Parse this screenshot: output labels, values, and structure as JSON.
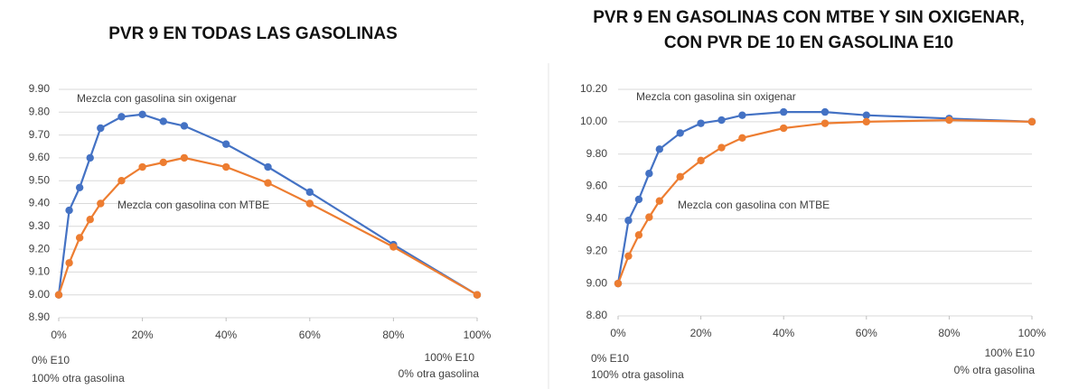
{
  "chart_data": [
    {
      "type": "line",
      "title": [
        "PVR 9 EN TODAS LAS GASOLINAS"
      ],
      "x": [
        0,
        2.5,
        5,
        7.5,
        10,
        15,
        20,
        25,
        30,
        40,
        50,
        60,
        80,
        100
      ],
      "series": [
        {
          "name": "Mezcla con gasolina sin oxigenar",
          "color": "#4472c4",
          "values": [
            9.0,
            9.37,
            9.47,
            9.6,
            9.73,
            9.78,
            9.79,
            9.76,
            9.74,
            9.66,
            9.56,
            9.45,
            9.22,
            9.0
          ]
        },
        {
          "name": "Mezcla con gasolina con MTBE",
          "color": "#ed7d31",
          "values": [
            9.0,
            9.14,
            9.25,
            9.33,
            9.4,
            9.5,
            9.56,
            9.58,
            9.6,
            9.56,
            9.49,
            9.4,
            9.21,
            9.0
          ]
        }
      ],
      "xlim": [
        0,
        100
      ],
      "xticks": [
        {
          "value": 0,
          "label": "0%"
        },
        {
          "value": 20,
          "label": "20%"
        },
        {
          "value": 40,
          "label": "40%"
        },
        {
          "value": 60,
          "label": "60%"
        },
        {
          "value": 80,
          "label": "80%"
        },
        {
          "value": 100,
          "label": "100%"
        }
      ],
      "ylim": [
        8.9,
        9.9
      ],
      "yticks": [
        {
          "value": 8.9,
          "label": "8.90"
        },
        {
          "value": 9.0,
          "label": "9.00"
        },
        {
          "value": 9.1,
          "label": "9.10"
        },
        {
          "value": 9.2,
          "label": "9.20"
        },
        {
          "value": 9.3,
          "label": "9.30"
        },
        {
          "value": 9.4,
          "label": "9.40"
        },
        {
          "value": 9.5,
          "label": "9.50"
        },
        {
          "value": 9.6,
          "label": "9.60"
        },
        {
          "value": 9.7,
          "label": "9.70"
        },
        {
          "value": 9.8,
          "label": "9.80"
        },
        {
          "value": 9.9,
          "label": "9.90"
        }
      ],
      "grid": true,
      "annotations": [
        "0% E10",
        "100% otra gasolina",
        "100% E10",
        "0% otra gasolina"
      ]
    },
    {
      "type": "line",
      "title": [
        "PVR 9 EN GASOLINAS CON MTBE Y SIN OXIGENAR,",
        "CON PVR DE 10 EN GASOLINA E10"
      ],
      "x": [
        0,
        2.5,
        5,
        7.5,
        10,
        15,
        20,
        25,
        30,
        40,
        50,
        60,
        80,
        100
      ],
      "series": [
        {
          "name": "Mezcla con gasolina sin oxigenar",
          "color": "#4472c4",
          "values": [
            9.0,
            9.39,
            9.52,
            9.68,
            9.83,
            9.93,
            9.99,
            10.01,
            10.04,
            10.06,
            10.06,
            10.04,
            10.02,
            10.0
          ]
        },
        {
          "name": "Mezcla con gasolina con MTBE",
          "color": "#ed7d31",
          "values": [
            9.0,
            9.17,
            9.3,
            9.41,
            9.51,
            9.66,
            9.76,
            9.84,
            9.9,
            9.96,
            9.99,
            10.0,
            10.01,
            10.0
          ]
        }
      ],
      "xlim": [
        0,
        100
      ],
      "xticks": [
        {
          "value": 0,
          "label": "0%"
        },
        {
          "value": 20,
          "label": "20%"
        },
        {
          "value": 40,
          "label": "40%"
        },
        {
          "value": 60,
          "label": "60%"
        },
        {
          "value": 80,
          "label": "80%"
        },
        {
          "value": 100,
          "label": "100%"
        }
      ],
      "ylim": [
        8.8,
        10.2
      ],
      "yticks": [
        {
          "value": 8.8,
          "label": "8.80"
        },
        {
          "value": 9.0,
          "label": "9.00"
        },
        {
          "value": 9.2,
          "label": "9.20"
        },
        {
          "value": 9.4,
          "label": "9.40"
        },
        {
          "value": 9.6,
          "label": "9.60"
        },
        {
          "value": 9.8,
          "label": "9.80"
        },
        {
          "value": 10.0,
          "label": "10.00"
        },
        {
          "value": 10.2,
          "label": "10.20"
        }
      ],
      "grid": true,
      "annotations": [
        "0% E10",
        "100% otra gasolina",
        "100% E10",
        "0% otra gasolina"
      ]
    }
  ]
}
